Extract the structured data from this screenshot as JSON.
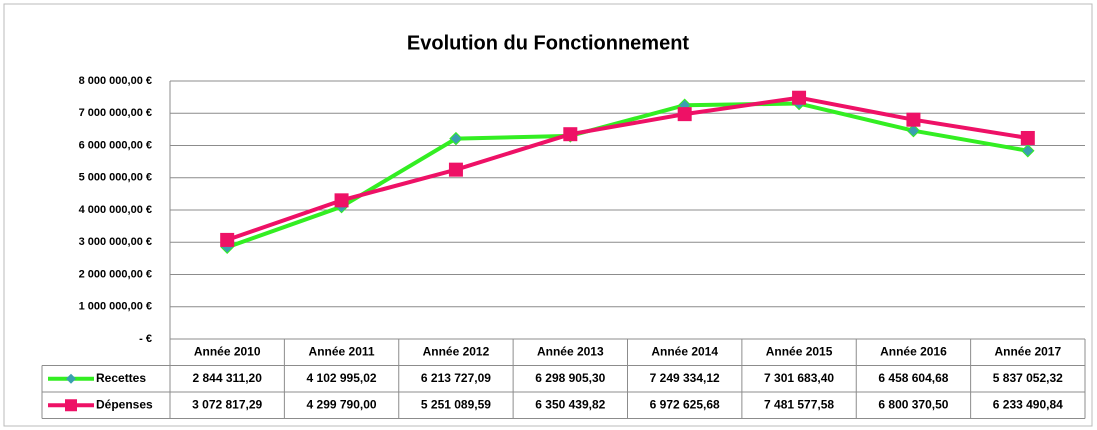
{
  "chart_data": {
    "type": "line",
    "title": "Evolution du Fonctionnement",
    "categories": [
      "Année 2010",
      "Année 2011",
      "Année 2012",
      "Année 2013",
      "Année 2014",
      "Année 2015",
      "Année 2016",
      "Année 2017"
    ],
    "series": [
      {
        "name": "Recettes",
        "color": "#33ee22",
        "marker": "diamond",
        "marker_color": "#3a9fb0",
        "values": [
          2844311.2,
          4102995.02,
          6213727.09,
          6298905.3,
          7249334.12,
          7301683.4,
          6458604.68,
          5837052.32
        ],
        "value_labels": [
          "2 844 311,20",
          "4 102 995,02",
          "6 213 727,09",
          "6 298 905,30",
          "7 249 334,12",
          "7 301 683,40",
          "6 458 604,68",
          "5 837 052,32"
        ]
      },
      {
        "name": "Dépenses",
        "color": "#ee1166",
        "marker": "square",
        "marker_color": "#ee1166",
        "values": [
          3072817.29,
          4299790.0,
          5251089.59,
          6350439.82,
          6972625.68,
          7481577.58,
          6800370.5,
          6233490.84
        ],
        "value_labels": [
          "3 072 817,29",
          "4 299 790,00",
          "5 251 089,59",
          "6 350 439,82",
          "6 972 625,68",
          "7 481 577,58",
          "6 800 370,50",
          "6 233 490,84"
        ]
      }
    ],
    "ylim": [
      0,
      8000000
    ],
    "yticks": [
      {
        "value": 0,
        "label": "-  €"
      },
      {
        "value": 1000000,
        "label": "1 000 000,00 €"
      },
      {
        "value": 2000000,
        "label": "2 000 000,00 €"
      },
      {
        "value": 3000000,
        "label": "3 000 000,00 €"
      },
      {
        "value": 4000000,
        "label": "4 000 000,00 €"
      },
      {
        "value": 5000000,
        "label": "5 000 000,00 €"
      },
      {
        "value": 6000000,
        "label": "6 000 000,00 €"
      },
      {
        "value": 7000000,
        "label": "7 000 000,00 €"
      },
      {
        "value": 8000000,
        "label": "8 000 000,00 €"
      }
    ],
    "grid": true,
    "legend": "data-table"
  }
}
